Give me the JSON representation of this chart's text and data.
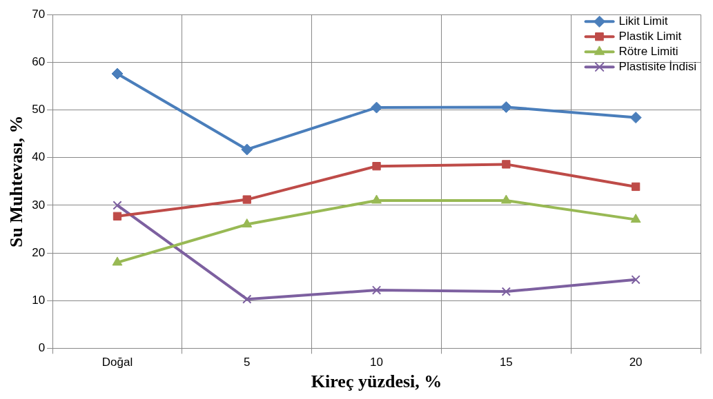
{
  "chart_data": {
    "type": "line",
    "xlabel": "Kireç yüzdesi, %",
    "ylabel": "Su Muhtevası, %",
    "categories": [
      "Doğal",
      "5",
      "10",
      "15",
      "20"
    ],
    "series": [
      {
        "name": "Likit Limit",
        "color": "#4a7ebb",
        "marker": "diamond",
        "values": [
          57.6,
          41.7,
          50.5,
          50.6,
          48.4
        ]
      },
      {
        "name": "Plastik Limit",
        "color": "#be4b48",
        "marker": "square",
        "values": [
          27.7,
          31.2,
          38.2,
          38.6,
          33.9
        ]
      },
      {
        "name": "Rötre Limiti",
        "color": "#98b954",
        "marker": "triangle",
        "values": [
          18,
          26,
          31,
          31,
          27
        ]
      },
      {
        "name": "Plastisite İndisi",
        "color": "#7d60a0",
        "marker": "cross",
        "values": [
          30,
          10.3,
          12.2,
          11.9,
          14.4
        ]
      }
    ],
    "ylim": [
      0,
      70
    ],
    "yticks": [
      0,
      10,
      20,
      30,
      40,
      50,
      60,
      70
    ],
    "grid": true,
    "legend": "top right",
    "line_style": "solid"
  }
}
